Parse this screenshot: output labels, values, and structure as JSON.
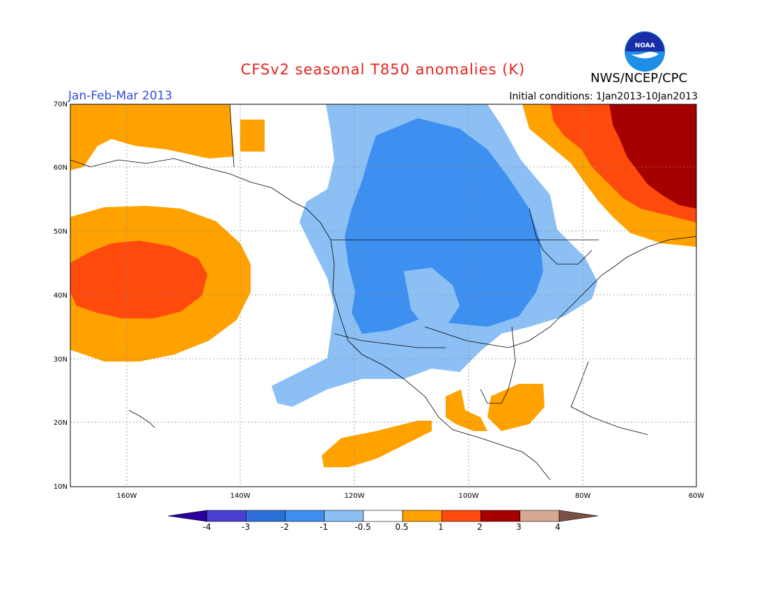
{
  "header": {
    "title": "CFSv2 seasonal T850 anomalies (K)",
    "agency": "NWS/NCEP/CPC",
    "season": "Jan-Feb-Mar 2013",
    "initial_conditions": "Initial conditions: 1Jan2013-10Jan2013",
    "logo_text": "NOAA"
  },
  "axes": {
    "lat_labels": [
      "70N",
      "60N",
      "50N",
      "40N",
      "30N",
      "20N",
      "10N"
    ],
    "lon_labels": [
      "160W",
      "140W",
      "120W",
      "100W",
      "80W",
      "60W"
    ]
  },
  "colorbar": {
    "labels": [
      "-4",
      "-3",
      "-2",
      "-1",
      "-0.5",
      "0.5",
      "1",
      "2",
      "3",
      "4"
    ],
    "colors": [
      "#2a00a0",
      "#4a3fd0",
      "#2d6fd8",
      "#3d8ff0",
      "#8cc0f5",
      "#ffffff",
      "#ffa200",
      "#ff4a0d",
      "#a50000",
      "#d5a894",
      "#7b5044"
    ]
  },
  "palette": {
    "cold_1": "#8cc0f5",
    "cold_2": "#3d8ff0",
    "warm_1": "#ffa200",
    "warm_2": "#ff4a0d",
    "warm_3": "#a50000"
  }
}
